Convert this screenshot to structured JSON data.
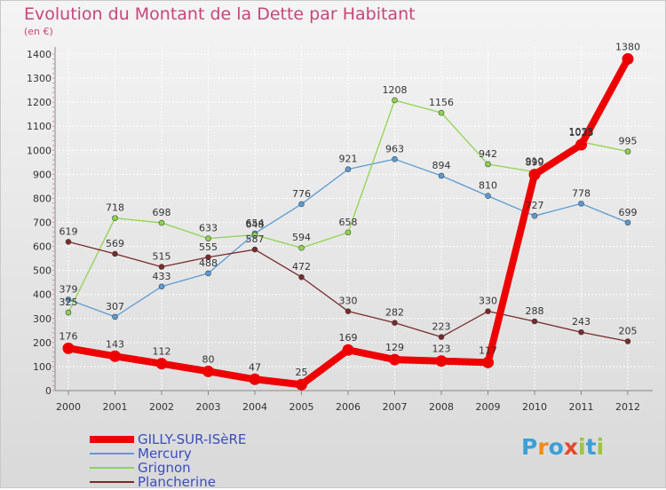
{
  "title": "Evolution du Montant de la Dette par Habitant",
  "unit": "(en €)",
  "logo": {
    "text": "Proxiti",
    "letter_colors": [
      "#3aa0d8",
      "#f08a1c",
      "#3aa0d8",
      "#e04a2a",
      "#9bc53d",
      "#3aa0d8",
      "#9bc53d"
    ]
  },
  "chart_data": {
    "type": "line",
    "title": "Evolution du Montant de la Dette par Habitant",
    "ylabel": "(en €)",
    "xlabel": "",
    "ylim": [
      0,
      1400
    ],
    "yticks": [
      0,
      100,
      200,
      300,
      400,
      500,
      600,
      700,
      800,
      900,
      1000,
      1100,
      1200,
      1300,
      1400
    ],
    "grid": true,
    "legend_position": "bottom-left",
    "x": [
      "2000",
      "2001",
      "2002",
      "2003",
      "2004",
      "2005",
      "2006",
      "2007",
      "2008",
      "2009",
      "2010",
      "2011",
      "2012"
    ],
    "series": [
      {
        "name": "GILLY-SUR-ISèRE",
        "color": "#ee0000",
        "width": 8,
        "marker_radius": 6.5,
        "values": [
          176,
          143,
          112,
          80,
          47,
          25,
          169,
          129,
          123,
          117,
          899,
          1023,
          1380
        ],
        "labels": [
          "176",
          "143",
          "112",
          "80",
          "47",
          "25",
          "169",
          "129",
          "123",
          "117",
          "899",
          "1023",
          "1380"
        ]
      },
      {
        "name": "Mercury",
        "color": "#5b9bd5",
        "width": 1.3,
        "marker_radius": 3,
        "values": [
          379,
          307,
          433,
          488,
          654,
          776,
          921,
          963,
          894,
          810,
          727,
          778,
          699
        ],
        "labels": [
          "379",
          "307",
          "433",
          "488",
          "654",
          "776",
          "921",
          "963",
          "894",
          "810",
          "727",
          "778",
          "699"
        ]
      },
      {
        "name": "Grignon",
        "color": "#8fd44e",
        "width": 1.3,
        "marker_radius": 3,
        "values": [
          325,
          718,
          698,
          633,
          648,
          594,
          658,
          1208,
          1156,
          942,
          910,
          1035,
          995
        ],
        "labels": [
          "325",
          "718",
          "698",
          "633",
          "648",
          "594",
          "658",
          "1208",
          "1156",
          "942",
          "910",
          "1035",
          "995"
        ]
      },
      {
        "name": "Plancherine",
        "color": "#7a2a2a",
        "width": 1.3,
        "marker_radius": 3,
        "values": [
          619,
          569,
          515,
          555,
          587,
          472,
          330,
          282,
          223,
          330,
          288,
          243,
          205
        ],
        "labels": [
          "619",
          "569",
          "515",
          "555",
          "587",
          "472",
          "330",
          "282",
          "223",
          "330",
          "288",
          "243",
          "205"
        ]
      }
    ]
  }
}
